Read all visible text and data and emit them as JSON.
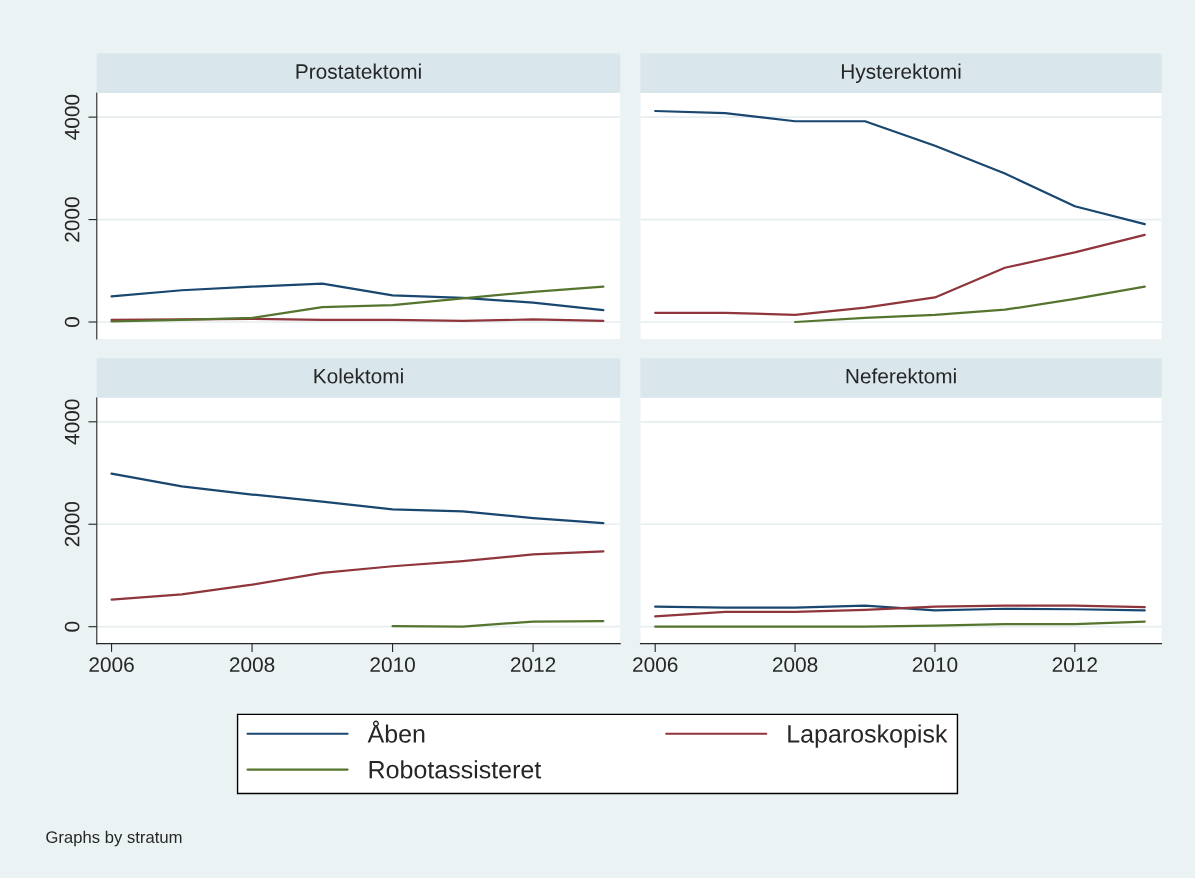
{
  "chart_data": [
    {
      "type": "line",
      "title": "Prostatektomi",
      "x": [
        2006,
        2007,
        2008,
        2009,
        2010,
        2011,
        2012,
        2013
      ],
      "xlim": [
        2005.79,
        2013.24
      ],
      "xticks": [
        2006,
        2008,
        2010,
        2012
      ],
      "ylim": [
        -330,
        4470
      ],
      "yticks": [
        0,
        2000,
        4000
      ],
      "grid": "y",
      "legend": "bottom",
      "tick_labels": "y",
      "series": [
        {
          "name": "Åben",
          "color": "#1a476f",
          "values": [
            500,
            620,
            690,
            750,
            520,
            470,
            380,
            230
          ]
        },
        {
          "name": "Laparoskopisk",
          "color": "#90353b",
          "values": [
            40,
            50,
            60,
            40,
            40,
            20,
            50,
            20
          ]
        },
        {
          "name": "Robotassisteret",
          "color": "#55752f",
          "values": [
            10,
            40,
            80,
            290,
            330,
            460,
            590,
            690
          ]
        }
      ]
    },
    {
      "type": "line",
      "title": "Hysterektomi",
      "x": [
        2006,
        2007,
        2008,
        2009,
        2010,
        2011,
        2012,
        2013
      ],
      "xlim": [
        2005.79,
        2013.24
      ],
      "xticks": [
        2006,
        2008,
        2010,
        2012
      ],
      "ylim": [
        -330,
        4470
      ],
      "yticks": [
        0,
        2000,
        4000
      ],
      "grid": "y",
      "tick_labels": false,
      "series": [
        {
          "color": "#1a476f",
          "values": [
            4120,
            4080,
            3920,
            3920,
            3440,
            2900,
            2260,
            1910
          ]
        },
        {
          "color": "#90353b",
          "values": [
            180,
            180,
            140,
            280,
            480,
            1060,
            1360,
            1700
          ]
        },
        {
          "color": "#55752f",
          "values": [
            null,
            null,
            0,
            80,
            140,
            240,
            450,
            690
          ]
        }
      ]
    },
    {
      "type": "line",
      "title": "Kolektomi",
      "x": [
        2006,
        2007,
        2008,
        2009,
        2010,
        2011,
        2012,
        2013
      ],
      "xlim": [
        2005.79,
        2013.24
      ],
      "xticks": [
        2006,
        2008,
        2010,
        2012
      ],
      "ylim": [
        -330,
        4470
      ],
      "yticks": [
        0,
        2000,
        4000
      ],
      "grid": "y",
      "series": [
        {
          "color": "#1a476f",
          "values": [
            2990,
            2740,
            2580,
            2440,
            2290,
            2250,
            2120,
            2020
          ]
        },
        {
          "color": "#90353b",
          "values": [
            530,
            630,
            820,
            1050,
            1180,
            1280,
            1410,
            1470
          ]
        },
        {
          "color": "#55752f",
          "values": [
            null,
            null,
            null,
            null,
            10,
            0,
            100,
            110
          ]
        }
      ]
    },
    {
      "type": "line",
      "title": "Neferektomi",
      "x": [
        2006,
        2007,
        2008,
        2009,
        2010,
        2011,
        2012,
        2013
      ],
      "xlim": [
        2005.79,
        2013.24
      ],
      "xticks": [
        2006,
        2008,
        2010,
        2012
      ],
      "ylim": [
        -330,
        4470
      ],
      "yticks": [
        0,
        2000,
        4000
      ],
      "grid": "y",
      "tick_labels": "x",
      "annotations": [
        "Graphs by stratum"
      ],
      "series": [
        {
          "color": "#1a476f",
          "values": [
            390,
            370,
            370,
            410,
            320,
            350,
            340,
            320
          ]
        },
        {
          "color": "#90353b",
          "values": [
            200,
            290,
            290,
            330,
            390,
            410,
            410,
            380
          ]
        },
        {
          "color": "#55752f",
          "values": [
            0,
            0,
            0,
            0,
            20,
            50,
            50,
            100
          ]
        }
      ]
    }
  ]
}
